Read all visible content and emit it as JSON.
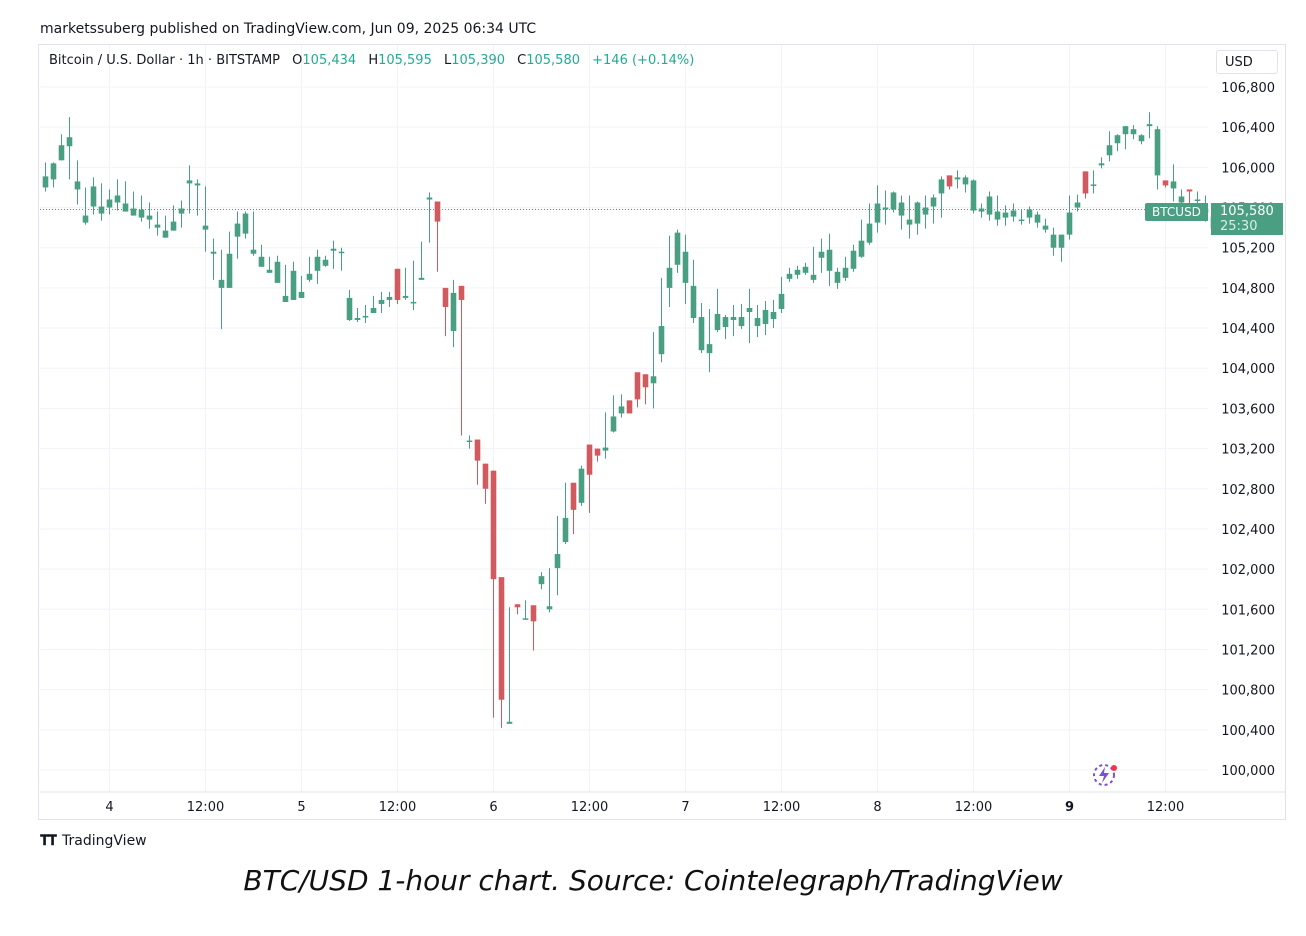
{
  "header": {
    "publisher": "marketssuberg published on TradingView.com, Jun 09, 2025 06:34 UTC"
  },
  "legend": {
    "symbol": "Bitcoin / U.S. Dollar · 1h · BITSTAMP",
    "open_label": "O",
    "open": "105,434",
    "high_label": "H",
    "high": "105,595",
    "low_label": "L",
    "low": "105,390",
    "close_label": "C",
    "close": "105,580",
    "change": "+146 (+0.14%)"
  },
  "currency_button": "USD",
  "price_tag": {
    "symbol": "BTCUSD",
    "price": "105,580",
    "countdown": "25:30"
  },
  "footer": {
    "brand": "TradingView"
  },
  "caption": "BTC/USD 1-hour chart. Source: Cointelegraph/TradingView",
  "colors": {
    "up": "#4a9e82",
    "down": "#d05a5e",
    "grid": "#f0f3fa",
    "axis_text": "#131722"
  },
  "icons": {
    "logo": "tradingview-logo-icon",
    "spark": "lightning-spark-icon"
  },
  "chart_data": {
    "type": "candlestick",
    "interval": "1h",
    "ylim": [
      99800,
      107000
    ],
    "y_ticks": [
      100000,
      100400,
      100800,
      101200,
      101600,
      102000,
      102400,
      102800,
      103200,
      103600,
      104000,
      104400,
      104800,
      105200,
      105600,
      106000,
      106400,
      106800
    ],
    "y_tick_labels": [
      "100,000",
      "100,400",
      "100,800",
      "101,200",
      "101,600",
      "102,000",
      "102,400",
      "102,800",
      "103,200",
      "103,600",
      "104,000",
      "104,400",
      "104,800",
      "105,200",
      "105,600",
      "106,000",
      "106,400",
      "106,800"
    ],
    "x_ticks": [
      {
        "label": "4",
        "x": 8,
        "bold": false
      },
      {
        "label": "12:00",
        "x": 20,
        "bold": false
      },
      {
        "label": "5",
        "x": 32,
        "bold": false
      },
      {
        "label": "12:00",
        "x": 44,
        "bold": false
      },
      {
        "label": "6",
        "x": 56,
        "bold": false
      },
      {
        "label": "12:00",
        "x": 68,
        "bold": false
      },
      {
        "label": "7",
        "x": 80,
        "bold": false
      },
      {
        "label": "12:00",
        "x": 92,
        "bold": false
      },
      {
        "label": "8",
        "x": 104,
        "bold": false
      },
      {
        "label": "12:00",
        "x": 116,
        "bold": false
      },
      {
        "label": "9",
        "x": 128,
        "bold": true
      },
      {
        "label": "12:00",
        "x": 140,
        "bold": false
      }
    ],
    "last_price": 105580,
    "candles": [
      [
        105910,
        106050,
        105800,
        105760
      ],
      [
        106040,
        106050,
        105880,
        105800
      ],
      [
        106220,
        106330,
        106070,
        106090
      ],
      [
        106300,
        106500,
        106210,
        105880
      ],
      [
        105860,
        106070,
        105780,
        105630
      ],
      [
        105520,
        105800,
        105450,
        105430
      ],
      [
        105810,
        105900,
        105610,
        105530
      ],
      [
        105610,
        105840,
        105540,
        105470
      ],
      [
        105680,
        105780,
        105600,
        105530
      ],
      [
        105720,
        105880,
        105650,
        105570
      ],
      [
        105640,
        105860,
        105560,
        105580
      ],
      [
        105590,
        105760,
        105520,
        105530
      ],
      [
        105580,
        105720,
        105500,
        105460
      ],
      [
        105520,
        105650,
        105480,
        105390
      ],
      [
        105430,
        105560,
        105400,
        105320
      ],
      [
        105370,
        105520,
        105300,
        105340
      ],
      [
        105460,
        105620,
        105370,
        105390
      ],
      [
        105590,
        105670,
        105540,
        105400
      ],
      [
        105870,
        106020,
        105840,
        105540
      ],
      [
        105840,
        105880,
        105820,
        105520
      ],
      [
        105420,
        105810,
        105380,
        105160
      ],
      [
        105140,
        105290,
        105160,
        104880
      ],
      [
        104880,
        105180,
        104800,
        104390
      ],
      [
        105140,
        105360,
        104800,
        104830
      ],
      [
        105440,
        105560,
        105310,
        105090
      ],
      [
        105540,
        105560,
        105340,
        105290
      ],
      [
        105180,
        105560,
        105140,
        105120
      ],
      [
        105110,
        105230,
        105010,
        105050
      ],
      [
        104980,
        105110,
        104950,
        104980
      ],
      [
        105060,
        105120,
        104850,
        104940
      ],
      [
        104720,
        105030,
        104660,
        104700
      ],
      [
        104970,
        105060,
        104680,
        104780
      ],
      [
        104760,
        104920,
        104700,
        104780
      ],
      [
        104940,
        105110,
        104880,
        104860
      ],
      [
        105110,
        105180,
        104970,
        104840
      ],
      [
        105080,
        105120,
        105020,
        105010
      ],
      [
        105190,
        105270,
        105170,
        104990
      ],
      [
        105160,
        105200,
        105150,
        104970
      ],
      [
        104700,
        104780,
        104480,
        104470
      ],
      [
        104500,
        104600,
        104480,
        104460
      ],
      [
        104520,
        104630,
        104510,
        104450
      ],
      [
        104600,
        104720,
        104550,
        104550
      ],
      [
        104640,
        104760,
        104680,
        104550
      ],
      [
        104710,
        104760,
        104680,
        104610
      ],
      [
        104990,
        104850,
        104680,
        104640
      ],
      [
        104720,
        105000,
        104700,
        104680
      ],
      [
        104660,
        105070,
        104650,
        104580
      ],
      [
        104900,
        105260,
        104880,
        104890
      ],
      [
        105700,
        105750,
        105680,
        105250
      ],
      [
        105660,
        105640,
        105460,
        104960
      ],
      [
        104800,
        104710,
        104610,
        104320
      ],
      [
        104750,
        104880,
        104370,
        104210
      ],
      [
        104820,
        104810,
        104680,
        103330
      ],
      [
        103280,
        103330,
        103280,
        103200
      ],
      [
        103290,
        103290,
        103080,
        102840
      ],
      [
        103050,
        102850,
        102800,
        102650
      ],
      [
        102980,
        102680,
        101900,
        100520
      ],
      [
        101920,
        101860,
        100700,
        100420
      ],
      [
        100460,
        101620,
        100480,
        101350
      ],
      [
        101650,
        101600,
        101620,
        101550
      ],
      [
        101510,
        101690,
        101500,
        101650
      ],
      [
        101640,
        101520,
        101480,
        101190
      ],
      [
        101930,
        101970,
        101850,
        101800
      ],
      [
        101630,
        102010,
        101600,
        101570
      ],
      [
        102150,
        102530,
        102010,
        101740
      ],
      [
        102510,
        102860,
        102270,
        102250
      ],
      [
        102860,
        102860,
        102590,
        102350
      ],
      [
        103000,
        103030,
        102660,
        102630
      ],
      [
        103240,
        103020,
        102940,
        102560
      ],
      [
        103200,
        103200,
        103130,
        103070
      ],
      [
        103210,
        103560,
        103180,
        103100
      ],
      [
        103520,
        103730,
        103370,
        103360
      ],
      [
        103620,
        103740,
        103550,
        103510
      ],
      [
        103680,
        103630,
        103550,
        103560
      ],
      [
        103960,
        103870,
        103690,
        103610
      ],
      [
        103940,
        103850,
        103810,
        103640
      ],
      [
        103920,
        104360,
        103850,
        103600
      ],
      [
        104420,
        104900,
        104140,
        104060
      ],
      [
        105000,
        105320,
        104800,
        104610
      ],
      [
        105350,
        105380,
        105030,
        104950
      ],
      [
        105160,
        105330,
        104850,
        104640
      ],
      [
        104820,
        105080,
        104500,
        104450
      ],
      [
        104510,
        104650,
        104180,
        104150
      ],
      [
        104240,
        104590,
        104150,
        103960
      ],
      [
        104540,
        104790,
        104380,
        104360
      ],
      [
        104410,
        104530,
        104510,
        104290
      ],
      [
        104480,
        104630,
        104510,
        104320
      ],
      [
        104510,
        104640,
        104420,
        104390
      ],
      [
        104560,
        104790,
        104600,
        104250
      ],
      [
        104420,
        104630,
        104500,
        104310
      ],
      [
        104580,
        104670,
        104440,
        104330
      ],
      [
        104490,
        104680,
        104560,
        104400
      ],
      [
        104590,
        104910,
        104740,
        104550
      ],
      [
        104940,
        105000,
        104890,
        104860
      ],
      [
        104930,
        105020,
        104980,
        104890
      ],
      [
        105010,
        105050,
        104950,
        104930
      ],
      [
        104930,
        105210,
        104880,
        104850
      ],
      [
        105160,
        105290,
        105100,
        104950
      ],
      [
        105180,
        105340,
        104970,
        104820
      ],
      [
        104960,
        105000,
        104850,
        104790
      ],
      [
        105000,
        105110,
        104900,
        104870
      ],
      [
        105170,
        105230,
        104990,
        104960
      ],
      [
        105270,
        105480,
        105110,
        105100
      ],
      [
        105440,
        105640,
        105250,
        105230
      ],
      [
        105450,
        105820,
        105640,
        105350
      ],
      [
        105580,
        105770,
        105600,
        105430
      ],
      [
        105750,
        105760,
        105580,
        105550
      ],
      [
        105650,
        105720,
        105520,
        105380
      ],
      [
        105430,
        105720,
        105480,
        105290
      ],
      [
        105650,
        105660,
        105440,
        105330
      ],
      [
        105530,
        105720,
        105600,
        105390
      ],
      [
        105610,
        105730,
        105700,
        105440
      ],
      [
        105880,
        105910,
        105740,
        105500
      ],
      [
        105920,
        105920,
        105810,
        105780
      ],
      [
        105900,
        105970,
        105880,
        105790
      ],
      [
        105830,
        105920,
        105900,
        105750
      ],
      [
        105870,
        105880,
        105570,
        105540
      ],
      [
        105590,
        105640,
        105560,
        105500
      ],
      [
        105710,
        105760,
        105530,
        105470
      ],
      [
        105560,
        105720,
        105480,
        105420
      ],
      [
        105550,
        105620,
        105500,
        105420
      ],
      [
        105570,
        105640,
        105510,
        105460
      ],
      [
        105480,
        105580,
        105470,
        105430
      ],
      [
        105580,
        105610,
        105500,
        105440
      ],
      [
        105530,
        105560,
        105450,
        105400
      ],
      [
        105420,
        105490,
        105380,
        105350
      ],
      [
        105330,
        105400,
        105200,
        105120
      ],
      [
        105200,
        105300,
        105330,
        105060
      ],
      [
        105550,
        105720,
        105330,
        105280
      ],
      [
        105650,
        105730,
        105600,
        105560
      ],
      [
        105960,
        105880,
        105740,
        105690
      ],
      [
        105830,
        105970,
        105830,
        105740
      ],
      [
        106020,
        106100,
        106040,
        105990
      ],
      [
        106120,
        106360,
        106220,
        106060
      ],
      [
        106240,
        106330,
        106320,
        106160
      ],
      [
        106330,
        106380,
        106410,
        106180
      ],
      [
        106380,
        106420,
        106330,
        106280
      ],
      [
        106260,
        106330,
        106320,
        106230
      ],
      [
        106410,
        106550,
        106430,
        106290
      ],
      [
        106380,
        106410,
        105920,
        105780
      ],
      [
        105870,
        105850,
        105820,
        105800
      ],
      [
        105790,
        106030,
        105860,
        105660
      ],
      [
        105710,
        105780,
        105650,
        105570
      ],
      [
        105780,
        105780,
        105760,
        105540
      ],
      [
        105680,
        105760,
        105670,
        105580
      ],
      [
        105590,
        105720,
        105550,
        105460
      ],
      [
        105510,
        105600,
        105390,
        105380
      ],
      [
        105380,
        105600,
        105470,
        105470
      ]
    ]
  }
}
